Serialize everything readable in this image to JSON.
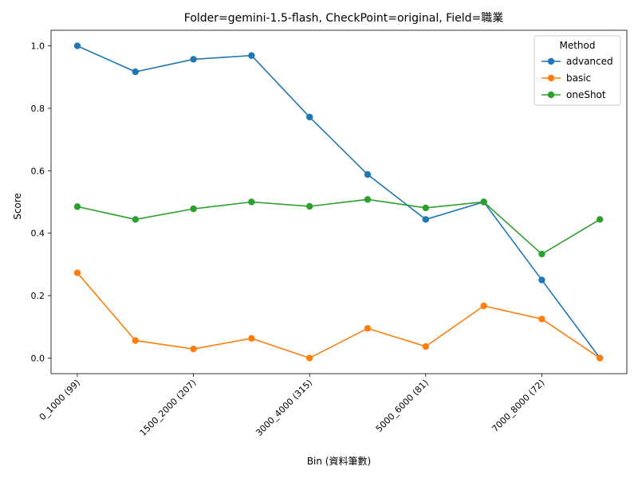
{
  "chart_data": {
    "type": "line",
    "title": "Folder=gemini-1.5-flash, CheckPoint=original, Field=職業",
    "xlabel": "Bin (資料筆數)",
    "ylabel": "Score",
    "x_ticks": [
      "0_1000 (99)",
      "1500_2000 (207)",
      "3000_4000 (315)",
      "5000_6000 (81)",
      "7000_8000 (72)"
    ],
    "x_tick_positions": [
      0,
      2,
      4,
      6,
      8
    ],
    "x_count": 10,
    "ylim": [
      -0.05,
      1.05
    ],
    "y_ticks": [
      0.0,
      0.2,
      0.4,
      0.6,
      0.8,
      1.0
    ],
    "y_tick_labels": [
      "0.0",
      "0.2",
      "0.4",
      "0.6",
      "0.8",
      "1.0"
    ],
    "grid": false,
    "legend_title": "Method",
    "legend_position": "upper right",
    "series": [
      {
        "name": "advanced",
        "color": "#1f77b4",
        "values": [
          1.0,
          0.917,
          0.957,
          0.969,
          0.772,
          0.588,
          0.444,
          0.5,
          0.25,
          0.0
        ]
      },
      {
        "name": "basic",
        "color": "#ff7f0e",
        "values": [
          0.273,
          0.056,
          0.029,
          0.063,
          0.0,
          0.095,
          0.037,
          0.167,
          0.125,
          0.0
        ]
      },
      {
        "name": "oneShot",
        "color": "#2ca02c",
        "values": [
          0.485,
          0.444,
          0.478,
          0.5,
          0.486,
          0.508,
          0.481,
          0.5,
          0.333,
          0.444
        ]
      }
    ]
  }
}
